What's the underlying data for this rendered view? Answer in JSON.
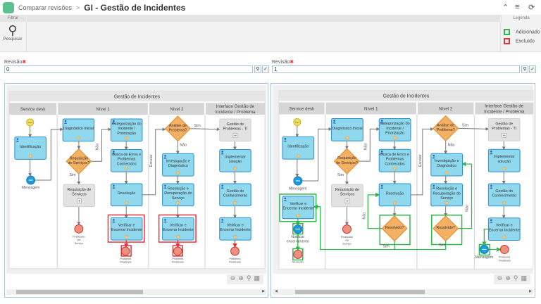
{
  "header": {
    "breadcrumb_parent": "Comparar revisões",
    "separator": ">",
    "title": "GI - Gestão de Incidentes",
    "icons": [
      "collapse-icon",
      "list-icon",
      "refresh-icon"
    ]
  },
  "ribbon": {
    "group_filter": "Filtrar",
    "search_label": "Pesquisar",
    "group_legend": "Legenda",
    "legend": [
      {
        "label": "Adicionado",
        "color": "#2db84d"
      },
      {
        "label": "Excluído",
        "color": "#e8303a"
      }
    ]
  },
  "revision_left": {
    "label": "Revisão",
    "value": "0"
  },
  "revision_right": {
    "label": "Revisão",
    "value": "1"
  },
  "colors": {
    "task_fill": "#8fd8ee",
    "task_stroke": "#2a8ec9",
    "gateway": "#f5b063",
    "added": "#2db84d",
    "removed": "#e8303a",
    "start": "#f5e15a",
    "end": "#ef8f80",
    "message": "#1e9be0"
  },
  "diagrams": {
    "left": {
      "title": "Gestão de Incidentes",
      "lanes": [
        "Service desk",
        "Nível 1",
        "Nível 2",
        "Interface Gestão de|Incidente / Problema"
      ],
      "nodes": {
        "start": [
          "Start"
        ],
        "ident": [
          "Identificação"
        ],
        "msg": [
          "Mensagem"
        ],
        "diag": [
          "Diagnóstico Inicial"
        ],
        "gwreq": [
          "Requisição",
          "de Serviços?"
        ],
        "reqsrv": [
          "Requisição de",
          "Serviços"
        ],
        "endsrv": [
          "Finalizado",
          "via",
          "Serviço"
        ],
        "cat": [
          "Categorização do",
          "Incidente /",
          "Priorização"
        ],
        "busca": [
          "Busca de Erros e",
          "Problemas",
          "Conhecidos"
        ],
        "resol": [
          "Resolução"
        ],
        "ver1": [
          "Verificar e",
          "Encerrar Incidente"
        ],
        "end1": [
          "Problema",
          "Finalizado"
        ],
        "gwan": [
          "Análise de",
          "Problema?"
        ],
        "inv": [
          "Investigação e",
          "Diagnóstico"
        ],
        "resrec": [
          "Resolução e",
          "Recuperação do",
          "Serviço"
        ],
        "ver2": [
          "Verificar e",
          "Encerrar Incidente"
        ],
        "end2": [
          "Problema",
          "Finalizado"
        ],
        "gprob": [
          "Gestão de",
          "Problemas - TI"
        ],
        "impl": [
          "Implementar",
          "solução"
        ],
        "gcon": [
          "Gestão do",
          "Conhecimento"
        ],
        "ver3": [
          "Verificar e",
          "Encerrar Incidente"
        ],
        "end3": [
          "Problema",
          "Finalizado"
        ]
      },
      "edge_labels": {
        "nao1": "Não",
        "sim1": "Sim",
        "escalar": "Escalar",
        "sim2": "Sim",
        "nao2": "Não"
      }
    },
    "right": {
      "title": "Gestão de Incidentes",
      "lanes": [
        "Service desk",
        "Nível 1",
        "Nível 2",
        "Interface Gestão de|Incidente / Problema"
      ],
      "nodes": {
        "start": [
          "Start"
        ],
        "ident": [
          "Identificação"
        ],
        "msg": [
          "Mensagem"
        ],
        "versd": [
          "Verificar e",
          "Encerrar Incidente"
        ],
        "notif": [
          "Notificar",
          "encerramento"
        ],
        "resolvido": [
          "Resolvido"
        ],
        "diag": [
          "Diagnóstico Inicial"
        ],
        "gwreq": [
          "Requisição",
          "de Serviços?"
        ],
        "reqsrv": [
          "Requisição de",
          "Serviços"
        ],
        "endsrv": [
          "Finalizado",
          "via",
          "Serviço"
        ],
        "cat": [
          "Categorização do",
          "Incidente /",
          "Priorização"
        ],
        "busca": [
          "Busca de Erros e",
          "Problemas",
          "Conhecidos"
        ],
        "resol": [
          "Resolução"
        ],
        "gwres1": [
          "Resolvido?"
        ],
        "gwan": [
          "Análise de",
          "Problema?"
        ],
        "inv": [
          "Investigação e",
          "Diagnóstico"
        ],
        "resrec": [
          "Resolução e",
          "Recuperação do",
          "Serviço"
        ],
        "gwres2": [
          "Resolvido?"
        ],
        "gprob": [
          "Gestão de",
          "Problemas - TI"
        ],
        "impl": [
          "Implementar",
          "solução"
        ],
        "gcon": [
          "Gestão do",
          "Conhecimento"
        ],
        "ver3": [
          "Verificar e",
          "Encerrar Incidente"
        ],
        "msg3": [
          "Mensagem"
        ],
        "end3": [
          "Problema",
          "Finalizado"
        ]
      },
      "edge_labels": {
        "nao1": "Não",
        "sim1": "Sim",
        "escalar": "Escalar",
        "sim2": "Sim",
        "nao2": "Não",
        "nao3": "Não",
        "sim3": "Sim",
        "nao4": "Não",
        "sim4": "Sim"
      }
    }
  },
  "zoom_controls": [
    "zoom-out-icon",
    "zoom-in-icon",
    "zoom-fit-icon",
    "export-icon"
  ]
}
